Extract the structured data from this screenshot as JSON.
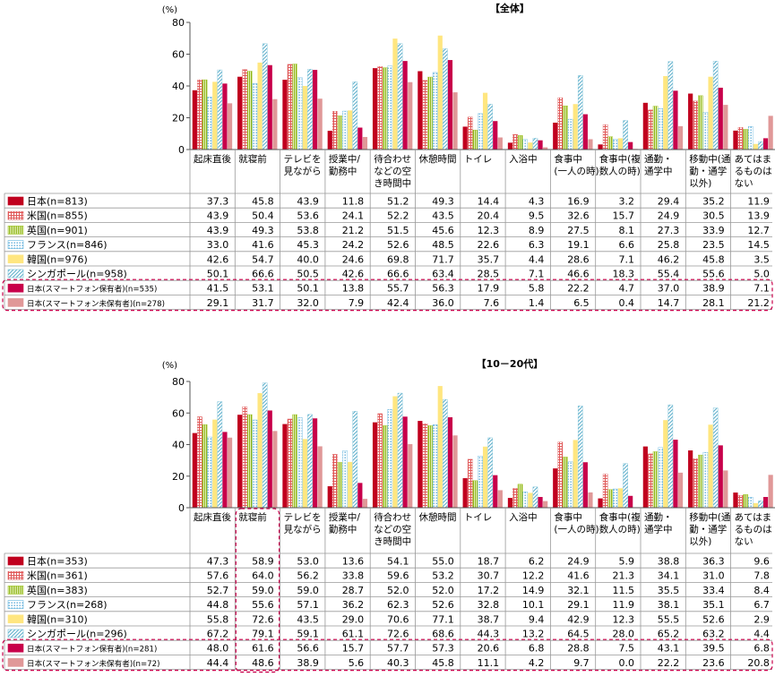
{
  "chart_data": [
    {
      "type": "bar",
      "title": "【全体】",
      "ylabel": "(%)",
      "ylim": [
        0,
        80
      ],
      "yticks": [
        0,
        20,
        40,
        60,
        80
      ],
      "grid": false,
      "categories": [
        "起床直後",
        "就寝前",
        "テレビを\n見ながら",
        "授業中/\n勤務中",
        "待合わせ\nなどの空\nき時間中",
        "休憩時間",
        "トイレ",
        "入浴中",
        "食事中\n(一人の時)",
        "食事中(複\n数人の時)",
        "通勤・\n通学中",
        "移動中(通\n勤・通学\n以外)",
        "あてはま\nるものは\nない"
      ],
      "series": [
        {
          "name": "日本(n=813)",
          "color": "#c0001e",
          "pattern": "solid",
          "values": [
            37.3,
            45.8,
            43.9,
            11.8,
            51.2,
            49.3,
            14.4,
            4.3,
            16.9,
            3.2,
            29.4,
            35.2,
            11.9
          ]
        },
        {
          "name": "米国(n=855)",
          "color": "#e05a5a",
          "pattern": "grid",
          "values": [
            43.9,
            50.4,
            53.6,
            24.1,
            52.2,
            43.5,
            20.4,
            9.5,
            32.6,
            15.7,
            24.9,
            30.5,
            13.9
          ]
        },
        {
          "name": "英国(n=901)",
          "color": "#9cc11a",
          "pattern": "vstripe",
          "values": [
            43.9,
            49.3,
            53.8,
            21.2,
            51.5,
            45.6,
            12.3,
            8.9,
            27.5,
            8.1,
            27.3,
            33.9,
            12.7
          ]
        },
        {
          "name": "フランス(n=846)",
          "color": "#68b8e0",
          "pattern": "dots",
          "values": [
            33.0,
            41.6,
            45.3,
            24.2,
            52.6,
            48.5,
            22.6,
            6.3,
            19.1,
            6.6,
            25.8,
            23.5,
            14.5
          ]
        },
        {
          "name": "韓国(n=976)",
          "color": "#ffe680",
          "pattern": "solid",
          "values": [
            42.6,
            54.7,
            40.0,
            24.6,
            69.8,
            71.7,
            35.7,
            4.4,
            28.6,
            7.1,
            46.2,
            45.8,
            3.5
          ]
        },
        {
          "name": "シンガポール(n=958)",
          "color": "#7ac2d8",
          "pattern": "diag",
          "values": [
            50.1,
            66.6,
            50.5,
            42.6,
            66.6,
            63.4,
            28.5,
            7.1,
            46.6,
            18.3,
            55.4,
            55.6,
            5.0
          ]
        },
        {
          "name": "日本(スマートフォン保有者)(n=535)",
          "color": "#c8004a",
          "pattern": "solid",
          "values": [
            41.5,
            53.1,
            50.1,
            13.8,
            55.7,
            56.3,
            17.9,
            5.8,
            22.2,
            4.7,
            37.0,
            38.9,
            7.1
          ]
        },
        {
          "name": "日本(スマートフォン未保有者)(n=278)",
          "color": "#e09898",
          "pattern": "solid",
          "values": [
            29.1,
            31.7,
            32.0,
            7.9,
            42.4,
            36.0,
            7.6,
            1.4,
            6.5,
            0.4,
            14.7,
            28.1,
            21.2
          ]
        }
      ],
      "highlight_column": null
    },
    {
      "type": "bar",
      "title": "【10－20代】",
      "ylabel": "(%)",
      "ylim": [
        0,
        80
      ],
      "yticks": [
        0,
        20,
        40,
        60,
        80
      ],
      "grid": false,
      "categories": [
        "起床直後",
        "就寝前",
        "テレビを\n見ながら",
        "授業中/\n勤務中",
        "待合わせ\nなどの空\nき時間中",
        "休憩時間",
        "トイレ",
        "入浴中",
        "食事中\n(一人の時)",
        "食事中(複\n数人の時)",
        "通勤・\n通学中",
        "移動中(通\n勤・通学\n以外)",
        "あてはま\nるものは\nない"
      ],
      "series": [
        {
          "name": "日本(n=353)",
          "color": "#c0001e",
          "pattern": "solid",
          "values": [
            47.3,
            58.9,
            53.0,
            13.6,
            54.1,
            55.0,
            18.7,
            6.2,
            24.9,
            5.9,
            38.8,
            36.3,
            9.6
          ]
        },
        {
          "name": "米国(n=361)",
          "color": "#e05a5a",
          "pattern": "grid",
          "values": [
            57.6,
            64.0,
            56.2,
            33.8,
            59.6,
            53.2,
            30.7,
            12.2,
            41.6,
            21.3,
            34.1,
            31.0,
            7.8
          ]
        },
        {
          "name": "英国(n=383)",
          "color": "#9cc11a",
          "pattern": "vstripe",
          "values": [
            52.7,
            59.0,
            59.0,
            28.7,
            52.0,
            52.0,
            17.2,
            14.9,
            32.1,
            11.5,
            35.5,
            33.4,
            8.4
          ]
        },
        {
          "name": "フランス(n=268)",
          "color": "#68b8e0",
          "pattern": "dots",
          "values": [
            44.8,
            55.6,
            57.1,
            36.2,
            62.3,
            52.6,
            32.8,
            10.1,
            29.1,
            11.9,
            38.1,
            35.1,
            6.7
          ]
        },
        {
          "name": "韓国(n=310)",
          "color": "#ffe680",
          "pattern": "solid",
          "values": [
            55.8,
            72.6,
            43.5,
            29.0,
            70.6,
            77.1,
            38.7,
            9.4,
            42.9,
            12.3,
            55.5,
            52.6,
            2.9
          ]
        },
        {
          "name": "シンガポール(n=296)",
          "color": "#7ac2d8",
          "pattern": "diag",
          "values": [
            67.2,
            79.1,
            59.1,
            61.1,
            72.6,
            68.6,
            44.3,
            13.2,
            64.5,
            28.0,
            65.2,
            63.2,
            4.4
          ]
        },
        {
          "name": "日本(スマートフォン保有者)(n=281)",
          "color": "#c8004a",
          "pattern": "solid",
          "values": [
            48.0,
            61.6,
            56.6,
            15.7,
            57.7,
            57.3,
            20.6,
            6.8,
            28.8,
            7.5,
            43.1,
            39.5,
            6.8
          ]
        },
        {
          "name": "日本(スマートフォン未保有者)(n=72)",
          "color": "#e09898",
          "pattern": "solid",
          "values": [
            44.4,
            48.6,
            38.9,
            5.6,
            40.3,
            45.8,
            11.1,
            4.2,
            9.7,
            0.0,
            22.2,
            23.6,
            20.8
          ]
        }
      ],
      "highlight_column": 1
    }
  ]
}
